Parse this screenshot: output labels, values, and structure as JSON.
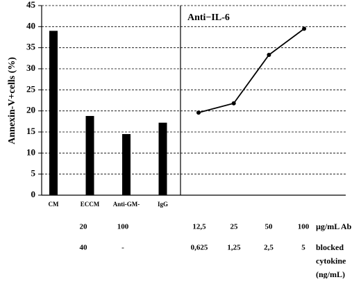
{
  "chart_data": [
    {
      "type": "bar",
      "y_label": "Annexin-V+cells (%)",
      "categories": [
        "CM",
        "ECCM",
        "Anti-GM-",
        "IgG"
      ],
      "values": [
        39,
        18.8,
        14.5,
        17.2
      ],
      "color": "#000000",
      "ylim": [
        0,
        45
      ],
      "yticks": [
        0,
        5,
        10,
        15,
        20,
        25,
        30,
        35,
        40,
        45
      ],
      "grid": true
    },
    {
      "type": "line",
      "title": "Anti−IL-6",
      "values": [
        19.6,
        21.8,
        33.3,
        39.5
      ],
      "color": "#000000",
      "ylim": [
        0,
        45
      ]
    }
  ],
  "table": {
    "rows": [
      [
        "20",
        "100",
        "12,5",
        "25",
        "50",
        "100",
        [
          "µg/mL Ab"
        ]
      ],
      [
        "40",
        "-",
        "0,625",
        "1,25",
        "2,5",
        "5",
        [
          "blocked",
          "cytokine",
          "(ng/mL)"
        ]
      ]
    ]
  }
}
